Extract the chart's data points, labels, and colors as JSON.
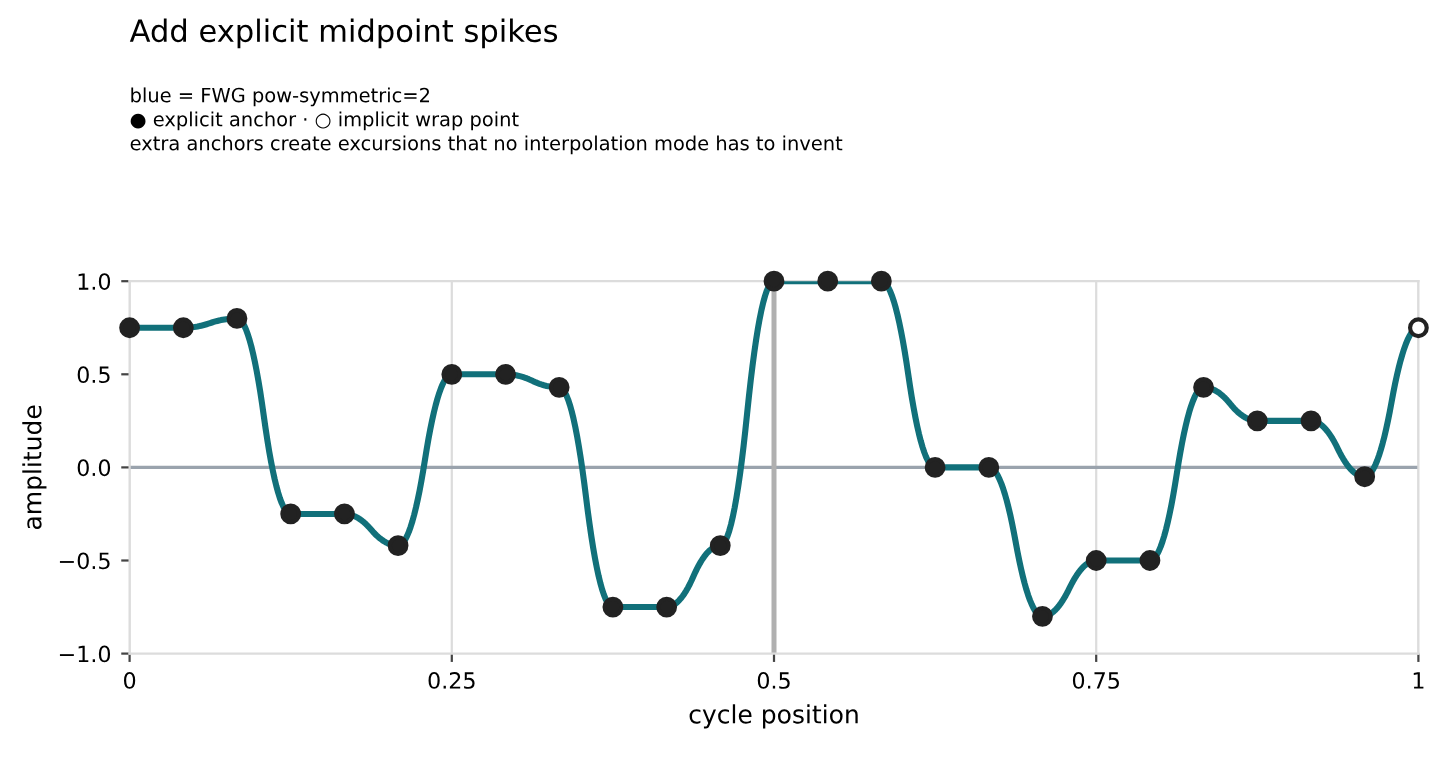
{
  "chart_data": {
    "type": "line",
    "title": "Add explicit midpoint spikes",
    "subtitle": "blue = FWG pow-symmetric=2\n● explicit anchor · ○ implicit wrap point\nextra anchors create excursions that no interpolation mode has to invent",
    "xlabel": "cycle position",
    "ylabel": "amplitude",
    "x": [
      0,
      0.0417,
      0.0833,
      0.125,
      0.1667,
      0.2083,
      0.25,
      0.2917,
      0.3333,
      0.375,
      0.4167,
      0.4583,
      0.5,
      0.5417,
      0.5833,
      0.625,
      0.6667,
      0.7083,
      0.75,
      0.7917,
      0.8333,
      0.875,
      0.9167,
      0.9583,
      1
    ],
    "series": [
      {
        "color": "#11707a",
        "marker": "none",
        "values": [
          0.75,
          0.75,
          0.8,
          -0.25,
          -0.25,
          -0.42,
          0.5,
          0.5,
          0.43,
          -0.75,
          -0.75,
          -0.42,
          1,
          1,
          1,
          0,
          0,
          -0.8,
          -0.5,
          -0.5,
          0.43,
          0.25,
          0.25,
          -0.05,
          0.75
        ]
      },
      {
        "type": "scatter",
        "color": "#222222",
        "marker": "circle",
        "x": [
          0,
          0.0417,
          0.0833,
          0.125,
          0.1667,
          0.2083,
          0.25,
          0.2917,
          0.3333,
          0.375,
          0.4167,
          0.4583,
          0.5,
          0.5417,
          0.5833,
          0.625,
          0.6667,
          0.7083,
          0.75,
          0.7917,
          0.8333,
          0.875,
          0.9167,
          0.9583
        ],
        "values": [
          0.75,
          0.75,
          0.8,
          -0.25,
          -0.25,
          -0.42,
          0.5,
          0.5,
          0.43,
          -0.75,
          -0.75,
          -0.42,
          1,
          1,
          1,
          0,
          0,
          -0.8,
          -0.5,
          -0.5,
          0.43,
          0.25,
          0.25,
          -0.05
        ]
      },
      {
        "type": "scatter",
        "color": "#ffffff",
        "marker": "circle",
        "x": [
          1
        ],
        "values": [
          0.75
        ]
      }
    ],
    "xlim": [
      0,
      1
    ],
    "xticks": [
      0,
      0.25,
      0.5,
      0.75,
      1
    ],
    "ylim": [
      -1.0,
      1.0
    ],
    "yticks": [
      {
        "value": -1.0,
        "label": "−1.0"
      },
      {
        "value": -0.5,
        "label": "−0.5"
      },
      {
        "value": 0.0,
        "label": "0.0"
      },
      {
        "value": 0.5,
        "label": "0.5"
      },
      {
        "value": 1.0,
        "label": "1.0"
      }
    ],
    "grid": "x",
    "ref_lines": [
      {
        "axis": "y",
        "value": 0,
        "color": "#9aa3ad"
      },
      {
        "axis": "x",
        "value": 0.5,
        "color": "#b0b0b0"
      }
    ]
  }
}
